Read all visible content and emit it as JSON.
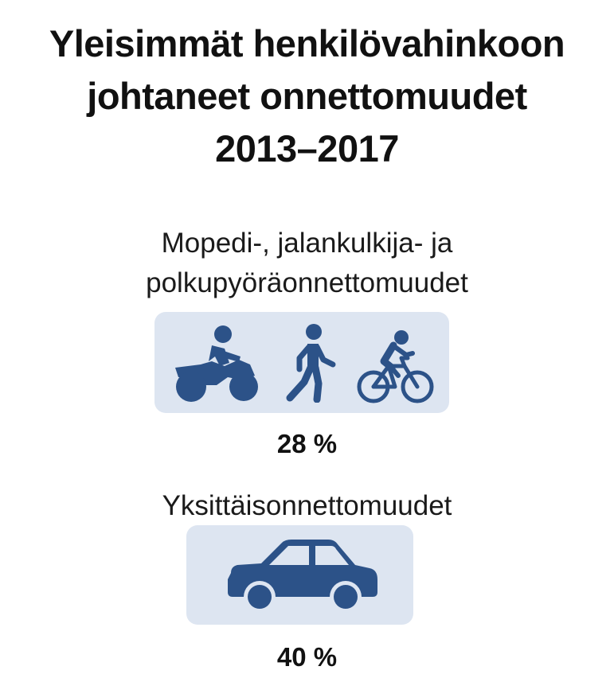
{
  "title": {
    "line1": "Yleisimmät henkilövahinkoon",
    "line2": "johtaneet onnettomuudet",
    "line3": "2013–2017"
  },
  "groups": [
    {
      "label_line1": "Mopedi-, jalankulkija- ja",
      "label_line2": "polkupyöräonnettomuudet",
      "percentage": "28 %",
      "icons": [
        "motorcycle-icon",
        "pedestrian-icon",
        "bicycle-icon"
      ]
    },
    {
      "label_line1": "Yksittäisonnettomuudet",
      "percentage": "40 %",
      "icons": [
        "car-icon"
      ]
    }
  ],
  "colors": {
    "icon": "#2c5288",
    "box_background": "#dde5f1",
    "text": "#111111"
  }
}
